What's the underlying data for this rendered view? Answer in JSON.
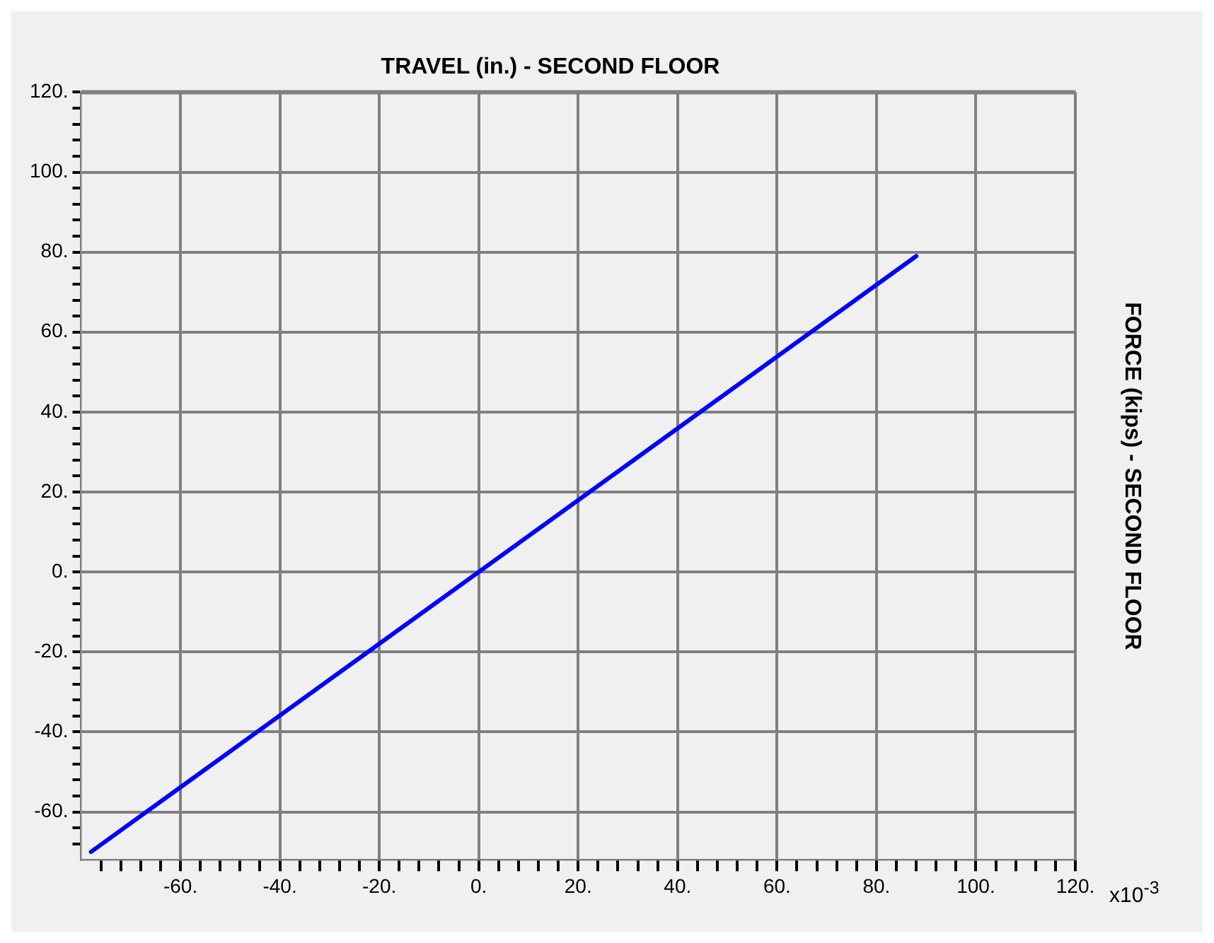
{
  "chart_data": {
    "type": "line",
    "title": "TRAVEL (in.) - SECOND FLOOR",
    "ylabel": "FORCE (kips) - SECOND FLOOR",
    "annotations": [
      "x10$^{-3}$"
    ],
    "xlim": [
      -80,
      120
    ],
    "ylim": [
      -72,
      120
    ],
    "xticks": [
      {
        "value": -76,
        "label": null
      },
      {
        "value": -72,
        "label": null
      },
      {
        "value": -68,
        "label": null
      },
      {
        "value": -64,
        "label": null
      },
      {
        "value": -60,
        "label": "-60."
      },
      {
        "value": -56,
        "label": null
      },
      {
        "value": -52,
        "label": null
      },
      {
        "value": -48,
        "label": null
      },
      {
        "value": -44,
        "label": null
      },
      {
        "value": -40,
        "label": "-40."
      },
      {
        "value": -36,
        "label": null
      },
      {
        "value": -32,
        "label": null
      },
      {
        "value": -28,
        "label": null
      },
      {
        "value": -24,
        "label": null
      },
      {
        "value": -20,
        "label": "-20."
      },
      {
        "value": -16,
        "label": null
      },
      {
        "value": -12,
        "label": null
      },
      {
        "value": -8,
        "label": null
      },
      {
        "value": -4,
        "label": null
      },
      {
        "value": 0,
        "label": "0."
      },
      {
        "value": 4,
        "label": null
      },
      {
        "value": 8,
        "label": null
      },
      {
        "value": 12,
        "label": null
      },
      {
        "value": 16,
        "label": null
      },
      {
        "value": 20,
        "label": "20."
      },
      {
        "value": 24,
        "label": null
      },
      {
        "value": 28,
        "label": null
      },
      {
        "value": 32,
        "label": null
      },
      {
        "value": 36,
        "label": null
      },
      {
        "value": 40,
        "label": "40."
      },
      {
        "value": 44,
        "label": null
      },
      {
        "value": 48,
        "label": null
      },
      {
        "value": 52,
        "label": null
      },
      {
        "value": 56,
        "label": null
      },
      {
        "value": 60,
        "label": "60."
      },
      {
        "value": 64,
        "label": null
      },
      {
        "value": 68,
        "label": null
      },
      {
        "value": 72,
        "label": null
      },
      {
        "value": 76,
        "label": null
      },
      {
        "value": 80,
        "label": "80."
      },
      {
        "value": 84,
        "label": null
      },
      {
        "value": 88,
        "label": null
      },
      {
        "value": 92,
        "label": null
      },
      {
        "value": 96,
        "label": null
      },
      {
        "value": 100,
        "label": "100."
      },
      {
        "value": 104,
        "label": null
      },
      {
        "value": 108,
        "label": null
      },
      {
        "value": 112,
        "label": null
      },
      {
        "value": 116,
        "label": null
      },
      {
        "value": 120,
        "label": "120."
      }
    ],
    "yticks": [
      {
        "value": -68,
        "label": null
      },
      {
        "value": -64,
        "label": null
      },
      {
        "value": -60,
        "label": "-60."
      },
      {
        "value": -56,
        "label": null
      },
      {
        "value": -52,
        "label": null
      },
      {
        "value": -48,
        "label": null
      },
      {
        "value": -44,
        "label": null
      },
      {
        "value": -40,
        "label": "-40."
      },
      {
        "value": -36,
        "label": null
      },
      {
        "value": -32,
        "label": null
      },
      {
        "value": -28,
        "label": null
      },
      {
        "value": -24,
        "label": null
      },
      {
        "value": -20,
        "label": "-20."
      },
      {
        "value": -16,
        "label": null
      },
      {
        "value": -12,
        "label": null
      },
      {
        "value": -8,
        "label": null
      },
      {
        "value": -4,
        "label": null
      },
      {
        "value": 0,
        "label": "0."
      },
      {
        "value": 4,
        "label": null
      },
      {
        "value": 8,
        "label": null
      },
      {
        "value": 12,
        "label": null
      },
      {
        "value": 16,
        "label": null
      },
      {
        "value": 20,
        "label": "20."
      },
      {
        "value": 24,
        "label": null
      },
      {
        "value": 28,
        "label": null
      },
      {
        "value": 32,
        "label": null
      },
      {
        "value": 36,
        "label": null
      },
      {
        "value": 40,
        "label": "40."
      },
      {
        "value": 44,
        "label": null
      },
      {
        "value": 48,
        "label": null
      },
      {
        "value": 52,
        "label": null
      },
      {
        "value": 56,
        "label": null
      },
      {
        "value": 60,
        "label": "60."
      },
      {
        "value": 64,
        "label": null
      },
      {
        "value": 68,
        "label": null
      },
      {
        "value": 72,
        "label": null
      },
      {
        "value": 76,
        "label": null
      },
      {
        "value": 80,
        "label": "80."
      },
      {
        "value": 84,
        "label": null
      },
      {
        "value": 88,
        "label": null
      },
      {
        "value": 92,
        "label": null
      },
      {
        "value": 96,
        "label": null
      },
      {
        "value": 100,
        "label": "100."
      },
      {
        "value": 104,
        "label": null
      },
      {
        "value": 108,
        "label": null
      },
      {
        "value": 112,
        "label": null
      },
      {
        "value": 116,
        "label": null
      },
      {
        "value": 120,
        "label": "120."
      }
    ],
    "grid": true,
    "legend": false,
    "marker": "none",
    "line_style": "solid",
    "series": [
      {
        "color": "#0000ff",
        "x": [
          -78,
          88
        ],
        "values": [
          -70,
          79
        ]
      }
    ]
  }
}
